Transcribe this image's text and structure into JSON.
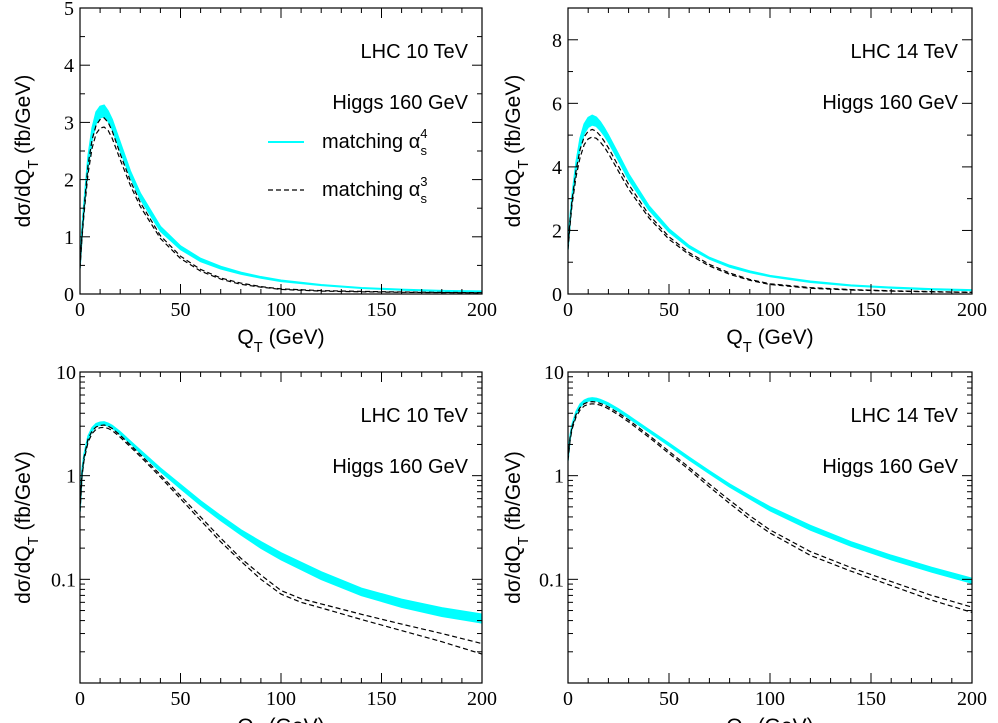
{
  "chart_data": [
    {
      "type": "line",
      "panel": "top-left",
      "xlabel": "Q_T (GeV)",
      "ylabel": "dσ/dQ_T (fb/GeV)",
      "xlim": [
        0,
        200
      ],
      "ylim": [
        0,
        5
      ],
      "yscale": "linear",
      "xticks": [
        0,
        50,
        100,
        150,
        200
      ],
      "yticks": [
        0,
        1,
        2,
        3,
        4,
        5
      ],
      "annotations": [
        "LHC 10 TeV",
        "Higgs 160 GeV"
      ],
      "legend": {
        "placement": "right",
        "entries": [
          {
            "label": "matching α",
            "sub": "s",
            "sup": "4",
            "style": "band",
            "color": "#00ffff"
          },
          {
            "label": "matching α",
            "sub": "s",
            "sup": "3",
            "style": "dashed",
            "color": "#000000"
          }
        ]
      },
      "series": [
        {
          "name": "matching α_s^4",
          "style": "band",
          "color": "#00ffff",
          "x": [
            0,
            1,
            2,
            4,
            6,
            8,
            10,
            12,
            14,
            16,
            20,
            25,
            30,
            40,
            50,
            60,
            70,
            80,
            90,
            100,
            120,
            140,
            160,
            180,
            200
          ],
          "y_low": [
            0.45,
            1.0,
            1.45,
            2.2,
            2.7,
            2.98,
            3.08,
            3.1,
            3.02,
            2.88,
            2.5,
            2.05,
            1.66,
            1.1,
            0.78,
            0.57,
            0.44,
            0.35,
            0.28,
            0.22,
            0.15,
            0.1,
            0.07,
            0.05,
            0.04
          ],
          "y_high": [
            0.55,
            1.15,
            1.6,
            2.4,
            2.9,
            3.18,
            3.28,
            3.3,
            3.2,
            3.05,
            2.65,
            2.15,
            1.76,
            1.18,
            0.84,
            0.62,
            0.48,
            0.38,
            0.3,
            0.24,
            0.16,
            0.11,
            0.08,
            0.06,
            0.05
          ]
        },
        {
          "name": "matching α_s^3 (upper)",
          "style": "dashed",
          "color": "#000000",
          "x": [
            0,
            1,
            2,
            4,
            6,
            8,
            10,
            12,
            14,
            16,
            20,
            25,
            30,
            40,
            50,
            60,
            70,
            80,
            90,
            100,
            120,
            140,
            160,
            180,
            200
          ],
          "y": [
            0.5,
            1.05,
            1.5,
            2.25,
            2.7,
            2.95,
            3.05,
            3.08,
            3.0,
            2.85,
            2.45,
            1.98,
            1.6,
            1.02,
            0.66,
            0.43,
            0.28,
            0.19,
            0.13,
            0.09,
            0.06,
            0.045,
            0.035,
            0.028,
            0.022
          ]
        },
        {
          "name": "matching α_s^3 (lower)",
          "style": "dashed",
          "color": "#000000",
          "x": [
            0,
            1,
            2,
            4,
            6,
            8,
            10,
            12,
            14,
            16,
            20,
            25,
            30,
            40,
            50,
            60,
            70,
            80,
            90,
            100,
            120,
            140,
            160,
            180,
            200
          ],
          "y": [
            0.45,
            0.98,
            1.4,
            2.1,
            2.55,
            2.8,
            2.9,
            2.92,
            2.86,
            2.72,
            2.35,
            1.9,
            1.53,
            0.97,
            0.62,
            0.4,
            0.26,
            0.17,
            0.12,
            0.08,
            0.05,
            0.038,
            0.03,
            0.024,
            0.019
          ]
        }
      ]
    },
    {
      "type": "line",
      "panel": "top-right",
      "xlabel": "Q_T (GeV)",
      "ylabel": "dσ/dQ_T (fb/GeV)",
      "xlim": [
        0,
        200
      ],
      "ylim": [
        0,
        9
      ],
      "yscale": "linear",
      "xticks": [
        0,
        50,
        100,
        150,
        200
      ],
      "yticks": [
        0,
        2,
        4,
        6,
        8
      ],
      "annotations": [
        "LHC 14 TeV",
        "Higgs 160 GeV"
      ],
      "series": [
        {
          "name": "matching α_s^4",
          "style": "band",
          "color": "#00ffff",
          "x": [
            0,
            1,
            2,
            4,
            6,
            8,
            10,
            12,
            14,
            16,
            18,
            20,
            25,
            30,
            40,
            50,
            60,
            70,
            80,
            90,
            100,
            120,
            140,
            160,
            180,
            200
          ],
          "y_low": [
            1.4,
            2.2,
            2.9,
            3.9,
            4.6,
            5.05,
            5.25,
            5.32,
            5.28,
            5.15,
            4.98,
            4.78,
            4.2,
            3.6,
            2.65,
            1.95,
            1.45,
            1.1,
            0.85,
            0.68,
            0.55,
            0.37,
            0.26,
            0.19,
            0.14,
            0.11
          ],
          "y_high": [
            1.6,
            2.4,
            3.1,
            4.15,
            4.9,
            5.35,
            5.55,
            5.62,
            5.56,
            5.42,
            5.22,
            5.0,
            4.4,
            3.78,
            2.78,
            2.05,
            1.52,
            1.15,
            0.9,
            0.72,
            0.58,
            0.4,
            0.28,
            0.21,
            0.16,
            0.13
          ]
        },
        {
          "name": "matching α_s^3 (upper)",
          "style": "dashed",
          "color": "#000000",
          "x": [
            0,
            1,
            2,
            4,
            6,
            8,
            10,
            12,
            14,
            16,
            18,
            20,
            25,
            30,
            40,
            50,
            60,
            70,
            80,
            90,
            100,
            120,
            140,
            160,
            180,
            200
          ],
          "y": [
            1.5,
            2.3,
            2.95,
            3.9,
            4.55,
            4.95,
            5.12,
            5.18,
            5.12,
            4.98,
            4.8,
            4.6,
            4.02,
            3.45,
            2.5,
            1.8,
            1.3,
            0.93,
            0.66,
            0.46,
            0.32,
            0.2,
            0.14,
            0.1,
            0.075,
            0.055
          ]
        },
        {
          "name": "matching α_s^3 (lower)",
          "style": "dashed",
          "color": "#000000",
          "x": [
            0,
            1,
            2,
            4,
            6,
            8,
            10,
            12,
            14,
            16,
            18,
            20,
            25,
            30,
            40,
            50,
            60,
            70,
            80,
            90,
            100,
            120,
            140,
            160,
            180,
            200
          ],
          "y": [
            1.4,
            2.15,
            2.8,
            3.7,
            4.3,
            4.7,
            4.88,
            4.94,
            4.9,
            4.78,
            4.62,
            4.42,
            3.86,
            3.3,
            2.4,
            1.72,
            1.24,
            0.88,
            0.62,
            0.43,
            0.3,
            0.18,
            0.125,
            0.09,
            0.066,
            0.049
          ]
        }
      ]
    },
    {
      "type": "line",
      "panel": "bottom-left",
      "xlabel": "Q_T (GeV)",
      "ylabel": "dσ/dQ_T (fb/GeV)",
      "xlim": [
        0,
        200
      ],
      "ylim": [
        0.01,
        10
      ],
      "yscale": "log",
      "xticks": [
        0,
        50,
        100,
        150,
        200
      ],
      "yticks": [
        0.1,
        1,
        10
      ],
      "ytick_labels": [
        "0.1",
        "1",
        "10"
      ],
      "annotations": [
        "LHC 10 TeV",
        "Higgs 160 GeV"
      ],
      "series": [
        {
          "name": "matching α_s^4",
          "style": "band",
          "color": "#00ffff",
          "x": [
            0,
            1,
            2,
            4,
            6,
            8,
            10,
            12,
            14,
            16,
            20,
            25,
            30,
            40,
            50,
            60,
            70,
            80,
            90,
            100,
            120,
            140,
            160,
            180,
            200
          ],
          "y_low": [
            0.45,
            1.0,
            1.45,
            2.2,
            2.7,
            2.98,
            3.08,
            3.1,
            3.02,
            2.88,
            2.5,
            2.05,
            1.66,
            1.1,
            0.75,
            0.52,
            0.37,
            0.27,
            0.2,
            0.155,
            0.1,
            0.07,
            0.054,
            0.044,
            0.038
          ],
          "y_high": [
            0.55,
            1.15,
            1.6,
            2.4,
            2.9,
            3.18,
            3.28,
            3.3,
            3.2,
            3.05,
            2.65,
            2.15,
            1.76,
            1.18,
            0.82,
            0.57,
            0.41,
            0.3,
            0.23,
            0.18,
            0.118,
            0.082,
            0.064,
            0.053,
            0.046
          ]
        },
        {
          "name": "matching α_s^3 (upper)",
          "style": "dashed",
          "color": "#000000",
          "x": [
            0,
            1,
            2,
            4,
            6,
            8,
            10,
            12,
            14,
            16,
            20,
            25,
            30,
            40,
            50,
            60,
            70,
            80,
            90,
            100,
            110,
            120,
            140,
            160,
            180,
            200
          ],
          "y": [
            0.5,
            1.05,
            1.5,
            2.25,
            2.7,
            2.95,
            3.05,
            3.08,
            3.0,
            2.85,
            2.45,
            1.98,
            1.6,
            1.02,
            0.64,
            0.4,
            0.25,
            0.16,
            0.11,
            0.078,
            0.065,
            0.058,
            0.046,
            0.037,
            0.03,
            0.024
          ]
        },
        {
          "name": "matching α_s^3 (lower)",
          "style": "dashed",
          "color": "#000000",
          "x": [
            0,
            1,
            2,
            4,
            6,
            8,
            10,
            12,
            14,
            16,
            20,
            25,
            30,
            40,
            50,
            60,
            70,
            80,
            90,
            100,
            110,
            120,
            140,
            160,
            180,
            200
          ],
          "y": [
            0.45,
            0.98,
            1.4,
            2.1,
            2.55,
            2.8,
            2.9,
            2.92,
            2.86,
            2.72,
            2.35,
            1.9,
            1.53,
            0.97,
            0.6,
            0.37,
            0.23,
            0.15,
            0.1,
            0.072,
            0.06,
            0.053,
            0.041,
            0.032,
            0.025,
            0.019
          ]
        }
      ]
    },
    {
      "type": "line",
      "panel": "bottom-right",
      "xlabel": "Q_T (GeV)",
      "ylabel": "dσ/dQ_T (fb/GeV)",
      "xlim": [
        0,
        200
      ],
      "ylim": [
        0.01,
        10
      ],
      "yscale": "log",
      "xticks": [
        0,
        50,
        100,
        150,
        200
      ],
      "yticks": [
        0.1,
        1,
        10
      ],
      "ytick_labels": [
        "0.1",
        "1",
        "10"
      ],
      "annotations": [
        "LHC 14 TeV",
        "Higgs 160 GeV"
      ],
      "series": [
        {
          "name": "matching α_s^4",
          "style": "band",
          "color": "#00ffff",
          "x": [
            0,
            1,
            2,
            4,
            6,
            8,
            10,
            12,
            14,
            16,
            18,
            20,
            25,
            30,
            40,
            50,
            60,
            70,
            80,
            90,
            100,
            120,
            140,
            160,
            180,
            200
          ],
          "y_low": [
            1.4,
            2.2,
            2.9,
            3.9,
            4.6,
            5.05,
            5.25,
            5.32,
            5.28,
            5.15,
            4.98,
            4.78,
            4.2,
            3.6,
            2.65,
            1.95,
            1.42,
            1.05,
            0.78,
            0.6,
            0.46,
            0.3,
            0.21,
            0.155,
            0.118,
            0.092
          ],
          "y_high": [
            1.6,
            2.4,
            3.1,
            4.15,
            4.9,
            5.35,
            5.55,
            5.62,
            5.56,
            5.42,
            5.22,
            5.0,
            4.4,
            3.78,
            2.78,
            2.05,
            1.5,
            1.11,
            0.83,
            0.64,
            0.5,
            0.33,
            0.23,
            0.17,
            0.13,
            0.102
          ]
        },
        {
          "name": "matching α_s^3 (upper)",
          "style": "dashed",
          "color": "#000000",
          "x": [
            0,
            1,
            2,
            4,
            6,
            8,
            10,
            12,
            14,
            16,
            18,
            20,
            25,
            30,
            40,
            50,
            60,
            70,
            80,
            90,
            100,
            120,
            140,
            160,
            180,
            200
          ],
          "y": [
            1.5,
            2.3,
            2.95,
            3.9,
            4.55,
            4.95,
            5.12,
            5.18,
            5.12,
            4.98,
            4.8,
            4.6,
            4.02,
            3.45,
            2.45,
            1.72,
            1.2,
            0.83,
            0.58,
            0.41,
            0.3,
            0.185,
            0.13,
            0.095,
            0.07,
            0.054
          ]
        },
        {
          "name": "matching α_s^3 (lower)",
          "style": "dashed",
          "color": "#000000",
          "x": [
            0,
            1,
            2,
            4,
            6,
            8,
            10,
            12,
            14,
            16,
            18,
            20,
            25,
            30,
            40,
            50,
            60,
            70,
            80,
            90,
            100,
            120,
            140,
            160,
            180,
            200
          ],
          "y": [
            1.4,
            2.15,
            2.8,
            3.7,
            4.3,
            4.7,
            4.88,
            4.94,
            4.9,
            4.78,
            4.62,
            4.42,
            3.86,
            3.3,
            2.35,
            1.64,
            1.14,
            0.78,
            0.54,
            0.38,
            0.28,
            0.17,
            0.12,
            0.087,
            0.063,
            0.048
          ]
        }
      ]
    }
  ]
}
